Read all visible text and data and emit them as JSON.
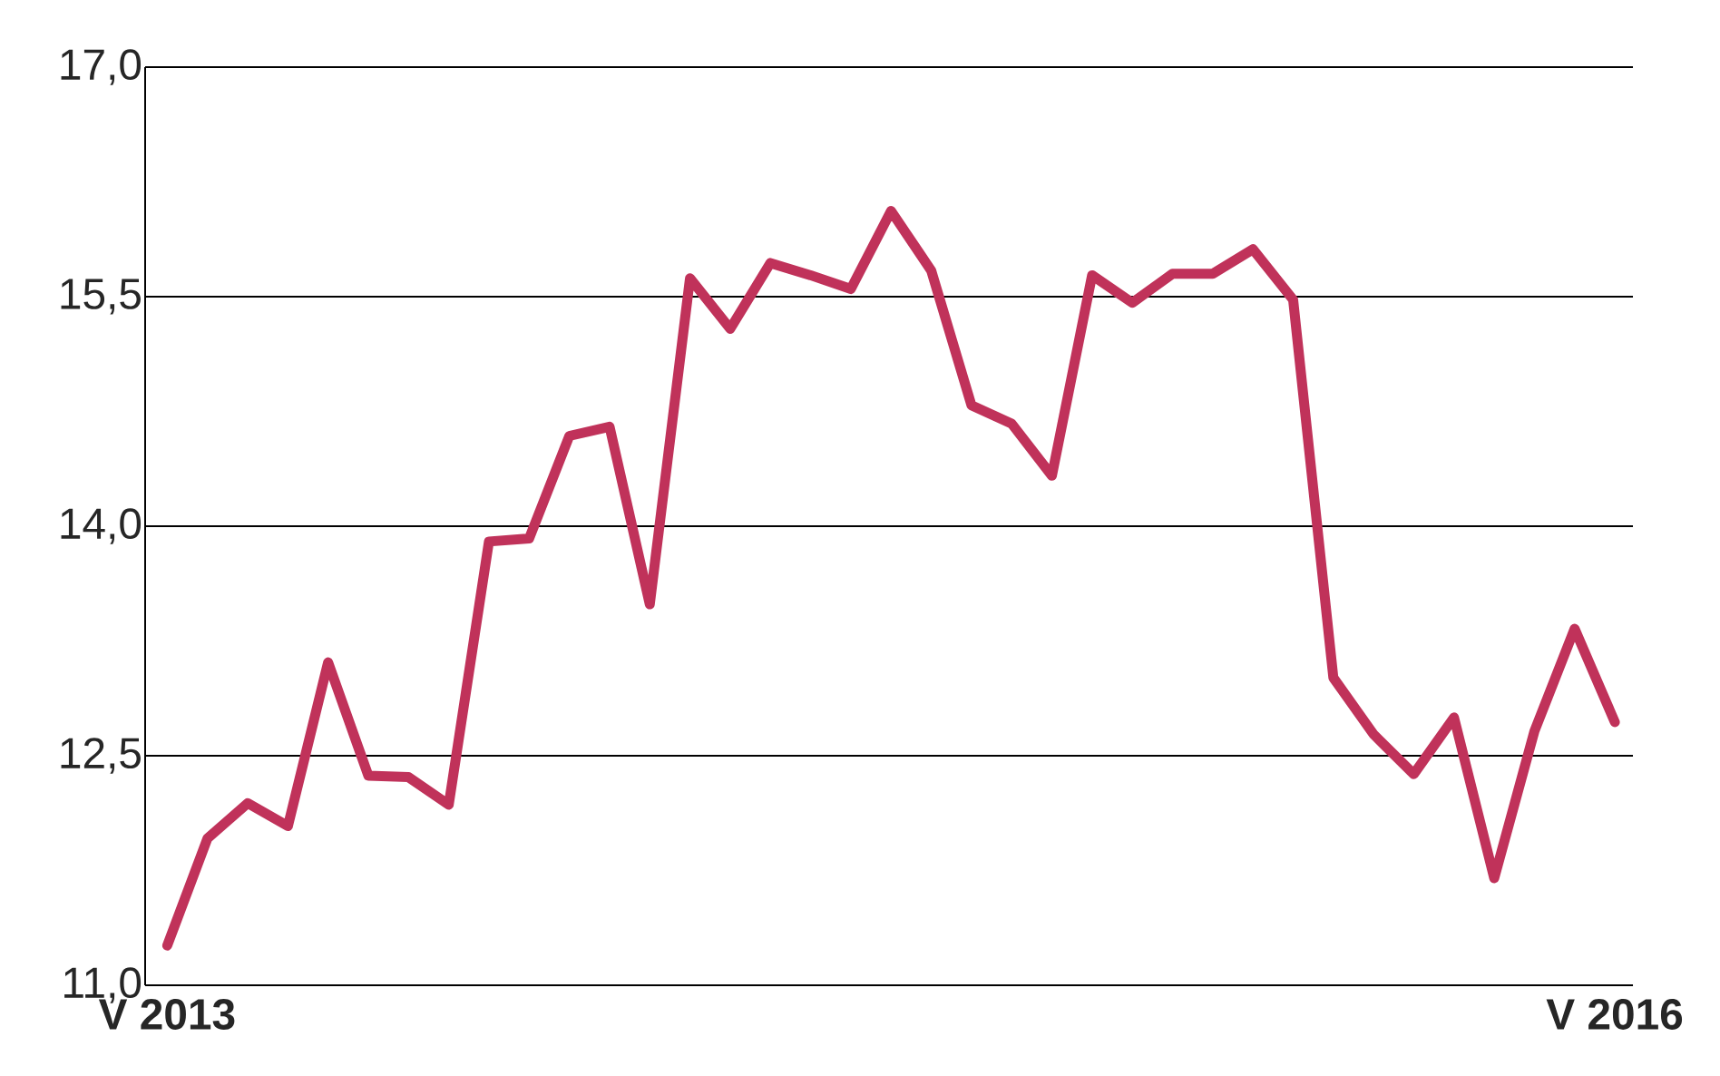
{
  "chart_data": {
    "type": "line",
    "categories": [
      "V 2013",
      null,
      null,
      null,
      null,
      null,
      null,
      null,
      null,
      null,
      null,
      null,
      null,
      null,
      null,
      null,
      null,
      null,
      null,
      null,
      null,
      null,
      null,
      null,
      null,
      null,
      null,
      null,
      null,
      null,
      null,
      null,
      null,
      null,
      null,
      null,
      "V 2016"
    ],
    "series": [
      {
        "color": "#c0325a",
        "values": [
          11.26,
          11.96,
          12.19,
          12.04,
          13.11,
          12.37,
          12.36,
          12.18,
          13.9,
          13.92,
          14.59,
          14.65,
          13.49,
          15.62,
          15.29,
          15.72,
          15.64,
          15.55,
          16.06,
          15.67,
          14.79,
          14.67,
          14.33,
          15.64,
          15.46,
          15.65,
          15.65,
          15.81,
          15.48,
          13.01,
          12.64,
          12.38,
          12.75,
          11.7,
          12.66,
          13.33,
          12.72
        ]
      }
    ],
    "ylim": [
      11,
      17
    ],
    "yticks": [
      {
        "value": 11,
        "label": "11,0"
      },
      {
        "value": 12.5,
        "label": "12,5"
      },
      {
        "value": 14,
        "label": "14,0"
      },
      {
        "value": 15.5,
        "label": "15,5"
      },
      {
        "value": 17,
        "label": "17,0"
      }
    ],
    "grid": "y",
    "marker": "none",
    "line_style": "solid"
  }
}
